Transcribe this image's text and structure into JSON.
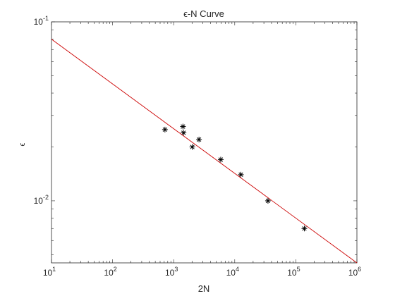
{
  "chart_data": {
    "type": "scatter",
    "title": "ϵ-N Curve",
    "xlabel": "2N",
    "ylabel": "ϵ",
    "x_scale": "log",
    "y_scale": "log",
    "xlim": [
      10,
      1000000
    ],
    "ylim": [
      0.0045,
      0.1
    ],
    "grid": false,
    "legend": "none",
    "x_ticks": [
      {
        "value": 10,
        "base": "10",
        "exp": "1"
      },
      {
        "value": 100,
        "base": "10",
        "exp": "2"
      },
      {
        "value": 1000,
        "base": "10",
        "exp": "3"
      },
      {
        "value": 10000,
        "base": "10",
        "exp": "4"
      },
      {
        "value": 100000,
        "base": "10",
        "exp": "5"
      },
      {
        "value": 1000000,
        "base": "10",
        "exp": "6"
      }
    ],
    "y_ticks": [
      {
        "value": 0.01,
        "base": "10",
        "exp": "-2"
      },
      {
        "value": 0.1,
        "base": "10",
        "exp": "-1"
      }
    ],
    "series": [
      {
        "type": "scatter",
        "marker": "asterisk",
        "color": "#000000",
        "points": [
          {
            "x": 720,
            "y": 0.025
          },
          {
            "x": 1420,
            "y": 0.026
          },
          {
            "x": 1450,
            "y": 0.024
          },
          {
            "x": 2020,
            "y": 0.02
          },
          {
            "x": 2600,
            "y": 0.022
          },
          {
            "x": 5900,
            "y": 0.017
          },
          {
            "x": 12600,
            "y": 0.014
          },
          {
            "x": 35000,
            "y": 0.01
          },
          {
            "x": 138000,
            "y": 0.007
          }
        ]
      },
      {
        "type": "line",
        "color": "#cc0000",
        "points": [
          {
            "x": 10,
            "y": 0.08
          },
          {
            "x": 1000000,
            "y": 0.0045
          }
        ]
      }
    ]
  }
}
